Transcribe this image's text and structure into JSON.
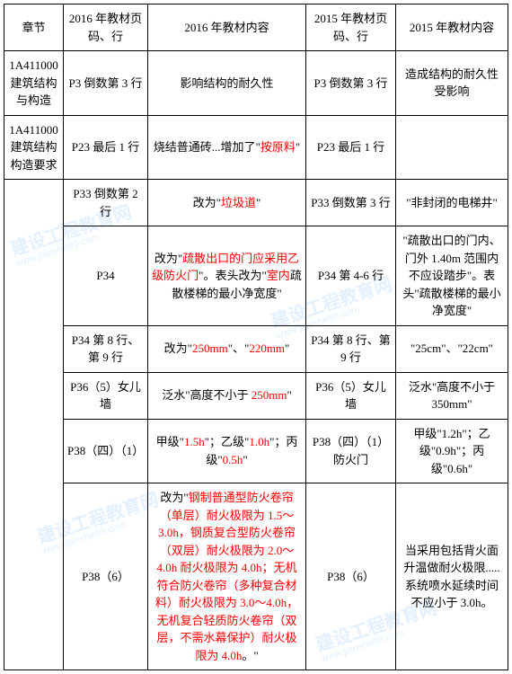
{
  "headers": {
    "c1": "章节",
    "c2": "2016 年教材页码、行",
    "c3": "2016 年教材内容",
    "c4": "2015 年教材页码、行",
    "c5": "2015 年教材内容"
  },
  "rows": [
    {
      "c1": "1A411000建筑结构与构造",
      "c2": "P3 倒数第 3 行",
      "c3": [
        {
          "t": "影响结构的耐久性"
        }
      ],
      "c4": "P3 倒数第 3 行",
      "c5": [
        {
          "t": "造成结构的耐久性受影响"
        }
      ]
    },
    {
      "c1": "1A411000建筑结构构造要求",
      "c2": "P23 最后 1 行",
      "c3": [
        {
          "t": "烧结普通砖...增加了\""
        },
        {
          "t": "按原料",
          "red": true
        },
        {
          "t": "\""
        }
      ],
      "c4": "P23 最后 1 行",
      "c5": []
    },
    {
      "c2": "P33 倒数第 2 行",
      "c3": [
        {
          "t": "改为\""
        },
        {
          "t": "垃圾道",
          "red": true
        },
        {
          "t": "\""
        }
      ],
      "c4": "P33 倒数第 3 行",
      "c5": [
        {
          "t": "\"非封闭的电梯井\""
        }
      ]
    },
    {
      "c2": "P34",
      "c3": [
        {
          "t": "改为\""
        },
        {
          "t": "疏散出口的门应采用乙级防火门",
          "red": true
        },
        {
          "t": "\"。表头改为\""
        },
        {
          "t": "室内",
          "red": true
        },
        {
          "t": "疏散楼梯的最小净宽度\""
        }
      ],
      "c4": "P34 第 4-6 行",
      "c5": [
        {
          "t": "\"疏散出口的门内、门外 1.40m 范围内不应设踏步\"。表头\"疏散楼梯的最小净宽度\""
        }
      ]
    },
    {
      "c2": "P34 第 8 行、第 9 行",
      "c3": [
        {
          "t": "改为\""
        },
        {
          "t": "250mm",
          "red": true
        },
        {
          "t": "\"、\""
        },
        {
          "t": "220mm",
          "red": true
        },
        {
          "t": "\""
        }
      ],
      "c4": "P34 第 8 行、第 9 行",
      "c5": [
        {
          "t": "\"25cm\"、\"22cm\""
        }
      ]
    },
    {
      "c2": "P36（5）女儿墙",
      "c3": [
        {
          "t": "泛水\"高度不小于 "
        },
        {
          "t": "250mm",
          "red": true
        },
        {
          "t": "\""
        }
      ],
      "c4": "P36（5）女儿墙",
      "c5": [
        {
          "t": "泛水\"高度不小于 350mm\""
        }
      ]
    },
    {
      "c2": "P38（四）（1）",
      "c3": [
        {
          "t": "甲级\""
        },
        {
          "t": "1.5h",
          "red": true
        },
        {
          "t": "\"；乙级\""
        },
        {
          "t": "1.0h",
          "red": true
        },
        {
          "t": "\"；丙级\""
        },
        {
          "t": "0.5h",
          "red": true
        },
        {
          "t": "\""
        }
      ],
      "c4": "P38（四）（1）防火门",
      "c5": [
        {
          "t": "甲级\"1.2h\"；乙级\"0.9h\"；丙级\"0.6h\""
        }
      ]
    },
    {
      "c2": "P38（6）",
      "c3": [
        {
          "t": "改为\""
        },
        {
          "t": "钢制普通型防火卷帘（单层）耐火极限为 1.5～3.0h，钢质复合型防火卷帘（双层）耐火极限为 2.0～4.0h 耐火极限为 4.0h；无机符合防火卷帘（多种复合材料）耐火极限为 3.0～4.0h，无机复合轻质防火卷帘（双层，不需水幕保护）耐火极限为 4.0h",
          "red": true
        },
        {
          "t": "。\""
        }
      ],
      "c4": "P38（6）",
      "c5": [
        {
          "t": "当采用包括背火面升温做耐火极限.....系统喷水延续时间不应小于 3.0h。"
        }
      ]
    }
  ],
  "rowspan_c1_start": 2,
  "rowspan_c1_span": 6,
  "watermark": {
    "main": "建设工程教育网",
    "sub": "www.jianshe99.com"
  }
}
